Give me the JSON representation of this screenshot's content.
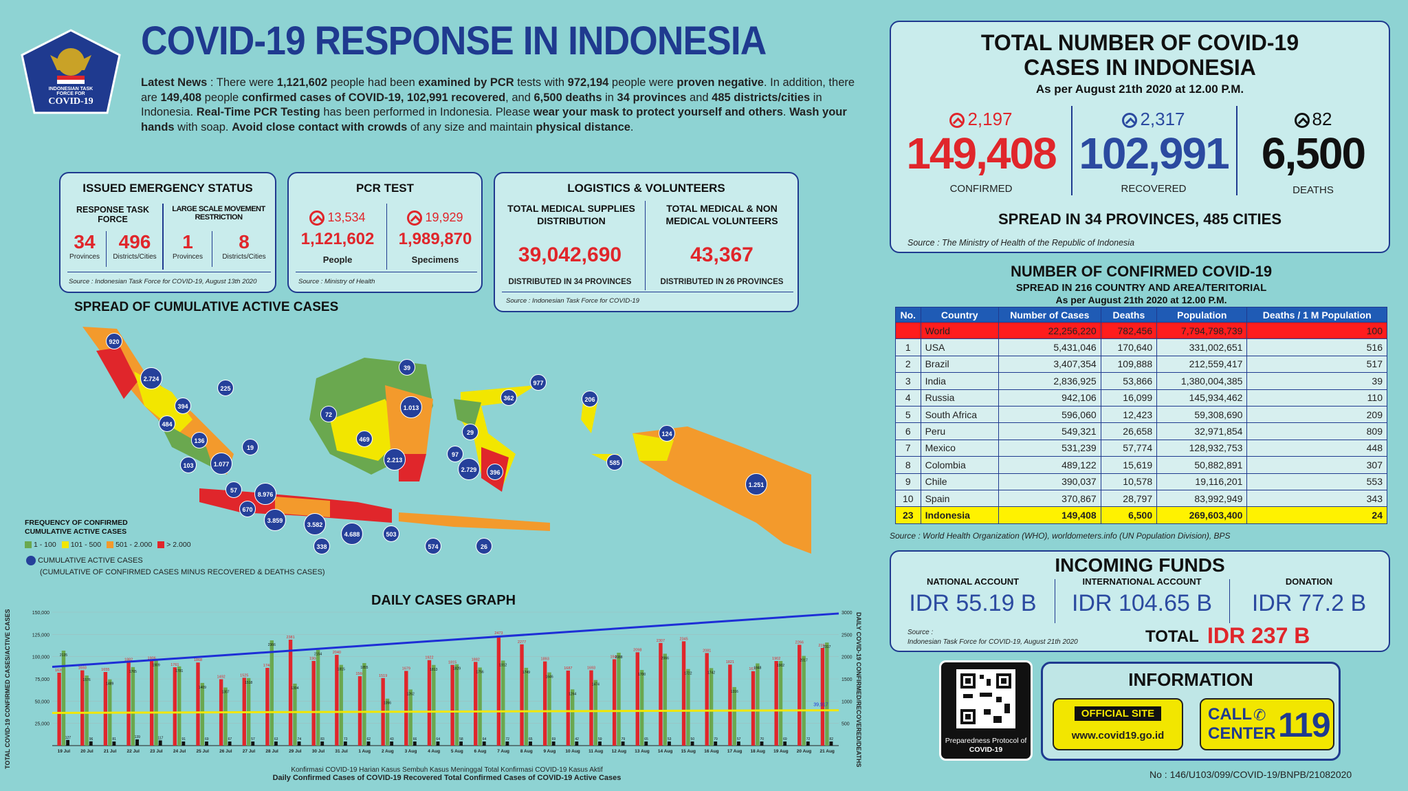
{
  "title": "COVID-19 RESPONSE IN INDONESIA",
  "logo": {
    "line1": "INDONESIAN TASK",
    "line2": "FORCE FOR",
    "line3": "COVID-19"
  },
  "news": {
    "p1": "Latest News",
    "p2": " : There were ",
    "p3": "1,121,602",
    "p4": " people had been ",
    "p5": "examined by PCR",
    "p6": " tests with ",
    "p7": "972,194",
    "p8": " people were ",
    "p9": "proven negative",
    "p10": ". In addition, there are ",
    "p11": "149,408",
    "p12": " people ",
    "p13": "confirmed cases of COVID-19, 102,991 recovered",
    "p14": ", and ",
    "p15": "6,500 deaths",
    "p16": " in ",
    "p17": "34 provinces",
    "p18": " and ",
    "p19": "485 districts/cities",
    "p20": " in Indonesia. ",
    "p21": "Real-Time PCR Testing",
    "p22": " has been performed in Indonesia. Please ",
    "p23": "wear your mask to protect yourself and others",
    "p24": ". ",
    "p25": "Wash your hands",
    "p26": " with soap. ",
    "p27": "Avoid close contact with crowds",
    "p28": " of any size and maintain ",
    "p29": "physical distance",
    "p30": "."
  },
  "emergency": {
    "title": "ISSUED EMERGENCY STATUS",
    "col1": "RESPONSE TASK FORCE",
    "col2": "LARGE SCALE MOVEMENT RESTRICTION",
    "v1": "34",
    "l1": "Provinces",
    "v2": "496",
    "l2": "Districts/Cities",
    "v3": "1",
    "l3": "Provinces",
    "v4": "8",
    "l4": "Districts/Cities",
    "source": "Source : Indonesian Task Force for COVID-19, August 13th 2020"
  },
  "pcr": {
    "title": "PCR TEST",
    "inc1": "13,534",
    "v1": "1,121,602",
    "l1": "People",
    "inc2": "19,929",
    "v2": "1,989,870",
    "l2": "Specimens",
    "source": "Source : Ministry of Health"
  },
  "logistics": {
    "title": "LOGISTICS & VOLUNTEERS",
    "h1": "TOTAL MEDICAL SUPPLIES DISTRIBUTION",
    "v1": "39,042,690",
    "d1": "DISTRIBUTED IN 34 PROVINCES",
    "h2": "TOTAL MEDICAL & NON MEDICAL VOLUNTEERS",
    "v2": "43,367",
    "d2": "DISTRIBUTED IN 26 PROVINCES",
    "source": "Source : Indonesian Task Force for COVID-19"
  },
  "map": {
    "title": "SPREAD OF CUMULATIVE ACTIVE CASES",
    "legend_title": "FREQUENCY OF CONFIRMED CUMULATIVE ACTIVE CASES",
    "legend": [
      {
        "label": "1 - 100",
        "color": "#6aa84f"
      },
      {
        "label": "101 - 500",
        "color": "#f2e600"
      },
      {
        "label": "501 - 2.000",
        "color": "#f39a2c"
      },
      {
        "label": "> 2.000",
        "color": "#e0262b"
      }
    ],
    "active_label": "CUMULATIVE ACTIVE CASES",
    "active_note": "(CUMULATIVE OF CONFIRMED CASES MINUS RECOVERED & DEATHS CASES)",
    "bubbles": [
      "920",
      "2.724",
      "225",
      "394",
      "484",
      "136",
      "19",
      "103",
      "1.077",
      "57",
      "8.976",
      "670",
      "3.859",
      "3.582",
      "338",
      "4.688",
      "503",
      "574",
      "26",
      "39",
      "72",
      "1.013",
      "469",
      "2.213",
      "362",
      "977",
      "206",
      "29",
      "97",
      "2.729",
      "396",
      "124",
      "585",
      "1.251"
    ]
  },
  "graph": {
    "title": "DAILY CASES GRAPH",
    "left_axis": "TOTAL COVID-19 CONFIRMED CASES/ACTIVE CASES",
    "right_axis": "DAILY COVID-19 CONFIRMED/RECOVERED/DEATHS",
    "legend1": "Konfirmasi COVID-19 Harian   Kasus Sembuh   Kasus Meninggal   Total Konfirmasi COVID-19   Kasus Aktif",
    "legend2": "Daily Confirmed Cases of COVID-19   Recovered   Total Confirmed Cases of COVID-19   Active Cases",
    "last_total": "39,917"
  },
  "chart_data": {
    "type": "bar",
    "categories": [
      "19 Jul",
      "20 Jul",
      "21 Jul",
      "22 Jul",
      "23 Jul",
      "24 Jul",
      "25 Jul",
      "26 Jul",
      "27 Jul",
      "28 Jul",
      "29 Jul",
      "30 Jul",
      "31 Jul",
      "1 Aug",
      "2 Aug",
      "3 Aug",
      "4 Aug",
      "5 Aug",
      "6 Aug",
      "7 Aug",
      "8 Aug",
      "9 Aug",
      "10 Aug",
      "11 Aug",
      "12 Aug",
      "13 Aug",
      "14 Aug",
      "15 Aug",
      "16 Aug",
      "17 Aug",
      "18 Aug",
      "19 Aug",
      "20 Aug",
      "21 Aug"
    ],
    "series": [
      {
        "name": "Daily Confirmed Cases of COVID-19",
        "values": [
          1639,
          1693,
          1655,
          1882,
          1906,
          1761,
          1868,
          1492,
          1525,
          1748,
          2381,
          1904,
          2040,
          1560,
          1519,
          1679,
          1922,
          1815,
          1882,
          2473,
          2277,
          1893,
          1687,
          1693,
          1942,
          2098,
          2307,
          2345,
          2081,
          1821,
          1673,
          1902,
          2266,
          2197
        ]
      },
      {
        "name": "Recovered",
        "values": [
          2135,
          1576,
          1489,
          1765,
          1909,
          1781,
          1409,
          1307,
          1518,
          2366,
          1394,
          2154,
          1815,
          1855,
          1056,
          1262,
          1813,
          1829,
          1756,
          1912,
          1749,
          1646,
          1264,
          1474,
          2088,
          1700,
          2066,
          1722,
          1742,
          1316,
          1848,
          1902,
          2017,
          2317
        ]
      },
      {
        "name": "Deaths",
        "values": [
          127,
          96,
          81,
          139,
          117,
          91,
          69,
          67,
          57,
          63,
          74,
          83,
          73,
          62,
          43,
          66,
          64,
          58,
          64,
          72,
          65,
          69,
          42,
          59,
          79,
          65,
          53,
          50,
          79,
          57,
          70,
          69,
          72,
          82
        ]
      }
    ],
    "left_ylim": [
      0,
      150000
    ],
    "right_ylim": [
      0,
      3000
    ],
    "left_ticks": [
      "150,000",
      "125,000",
      "100,000",
      "75,000",
      "50,000",
      "25,000"
    ],
    "right_ticks": [
      "3000",
      "2500",
      "2000",
      "1500",
      "1000",
      "500"
    ]
  },
  "total_box": {
    "title1": "TOTAL NUMBER OF COVID-19",
    "title2": "CASES IN INDONESIA",
    "date": "As per August 21th 2020 at 12.00 P.M.",
    "c_inc": "2,197",
    "c_val": "149,408",
    "c_lbl": "CONFIRMED",
    "r_inc": "2,317",
    "r_val": "102,991",
    "r_lbl": "RECOVERED",
    "d_inc": "82",
    "d_val": "6,500",
    "d_lbl": "DEATHS",
    "spread": "SPREAD IN 34 PROVINCES, 485 CITIES",
    "source": "Source : The Ministry of Health of the Republic of Indonesia"
  },
  "world": {
    "title": "NUMBER OF CONFIRMED COVID-19",
    "subtitle": "SPREAD IN 216 COUNTRY AND AREA/TERITORIAL",
    "date": "As per August 21th 2020 at 12.00 P.M.",
    "headers": [
      "No.",
      "Country",
      "Number of Cases",
      "Deaths",
      "Population",
      "Deaths / 1 M Population"
    ],
    "rows": [
      [
        "",
        "World",
        "22,256,220",
        "782,456",
        "7,794,798,739",
        "100"
      ],
      [
        "1",
        "USA",
        "5,431,046",
        "170,640",
        "331,002,651",
        "516"
      ],
      [
        "2",
        "Brazil",
        "3,407,354",
        "109,888",
        "212,559,417",
        "517"
      ],
      [
        "3",
        "India",
        "2,836,925",
        "53,866",
        "1,380,004,385",
        "39"
      ],
      [
        "4",
        "Russia",
        "942,106",
        "16,099",
        "145,934,462",
        "110"
      ],
      [
        "5",
        "South Africa",
        "596,060",
        "12,423",
        "59,308,690",
        "209"
      ],
      [
        "6",
        "Peru",
        "549,321",
        "26,658",
        "32,971,854",
        "809"
      ],
      [
        "7",
        "Mexico",
        "531,239",
        "57,774",
        "128,932,753",
        "448"
      ],
      [
        "8",
        "Colombia",
        "489,122",
        "15,619",
        "50,882,891",
        "307"
      ],
      [
        "9",
        "Chile",
        "390,037",
        "10,578",
        "19,116,201",
        "553"
      ],
      [
        "10",
        "Spain",
        "370,867",
        "28,797",
        "83,992,949",
        "343"
      ],
      [
        "23",
        "Indonesia",
        "149,408",
        "6,500",
        "269,603,400",
        "24"
      ]
    ],
    "source": "Source : World Health Organization (WHO), worldometers.info (UN Population Division), BPS"
  },
  "funds": {
    "title": "INCOMING FUNDS",
    "l1": "NATIONAL ACCOUNT",
    "v1": "IDR 55.19 B",
    "l2": "INTERNATIONAL ACCOUNT",
    "v2": "IDR 104.65 B",
    "l3": "DONATION",
    "v3": "IDR 77.2 B",
    "source1": "Source :",
    "source2": "Indonesian Task Force for COVID-19, August 21th 2020",
    "total_label": "TOTAL",
    "total": "IDR 237 B"
  },
  "qr": {
    "line1": "Preparedness Protocol of",
    "line2": "COVID-19"
  },
  "info": {
    "title": "INFORMATION",
    "site_label": "OFFICIAL SITE",
    "site_url": "www.covid19.go.id",
    "call1": "CALL",
    "call2": "CENTER",
    "call_num": "119"
  },
  "doc_no": "No : 146/U103/099/COVID-19/BNPB/21082020"
}
